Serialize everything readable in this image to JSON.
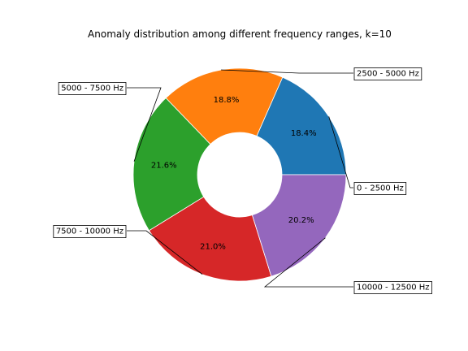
{
  "chart_data": {
    "type": "pie",
    "title": "Anomaly distribution among different frequency ranges, k=10",
    "donut": true,
    "start_angle_deg": 0,
    "direction": "counterclockwise",
    "slices": [
      {
        "label": "0 - 2500 Hz",
        "value": 18.4,
        "pct_label": "18.4%",
        "color": "#1f77b4"
      },
      {
        "label": "2500 - 5000 Hz",
        "value": 18.8,
        "pct_label": "18.8%",
        "color": "#ff7f0e"
      },
      {
        "label": "5000 - 7500 Hz",
        "value": 21.6,
        "pct_label": "21.6%",
        "color": "#2ca02c"
      },
      {
        "label": "7500 - 10000 Hz",
        "value": 21.0,
        "pct_label": "21.0%",
        "color": "#d62728"
      },
      {
        "label": "10000 - 12500 Hz",
        "value": 20.2,
        "pct_label": "20.2%",
        "color": "#9467bd"
      }
    ]
  }
}
